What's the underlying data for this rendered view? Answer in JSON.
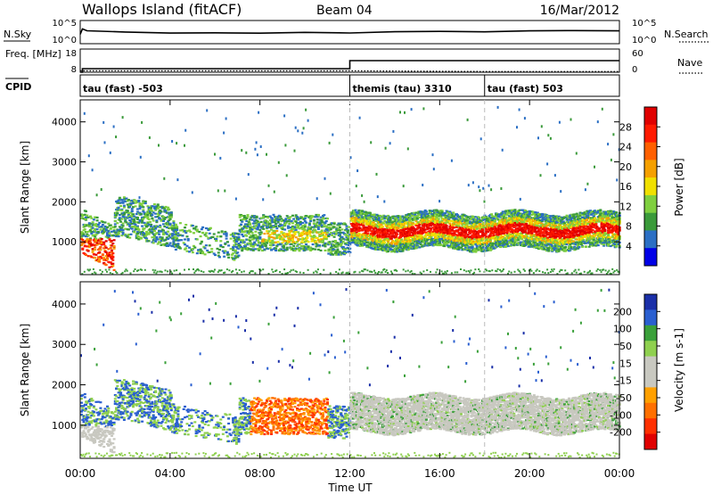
{
  "header": {
    "title": "Wallops Island (fitACF)",
    "beam": "Beam 04",
    "date": "16/Mar/2012"
  },
  "colors": {
    "power_scale": [
      "#0000e6",
      "#2b6fc4",
      "#3a9a3a",
      "#7fcf3f",
      "#f0e000",
      "#f5a000",
      "#ff6000",
      "#ff1a00",
      "#e00000"
    ],
    "velocity_scale": [
      "#1a2fa8",
      "#2a5fd0",
      "#3aa03a",
      "#8fd04f",
      "#c8c8c0",
      "#c8c8c0",
      "#ffa000",
      "#ff7000",
      "#ff3000",
      "#e00000"
    ]
  },
  "chart_data": [
    {
      "type": "line",
      "panel": "noise",
      "ylabel_left": "N.Sky",
      "ylabel_right": "N.Search",
      "yticks_left": [
        "10^5",
        "10^0"
      ],
      "yticks_right": [
        "10^5",
        "10^0"
      ],
      "series": [
        {
          "name": "N.Sky",
          "x": [
            0,
            0.1,
            0.3,
            2,
            4,
            6,
            8,
            10,
            12,
            14,
            16,
            18,
            20,
            22,
            24
          ],
          "y": [
            0.4,
            0.65,
            0.55,
            0.48,
            0.45,
            0.46,
            0.47,
            0.47,
            0.45,
            0.5,
            0.52,
            0.52,
            0.54,
            0.58,
            0.55
          ]
        }
      ]
    },
    {
      "type": "line",
      "panel": "frequency",
      "ylabel_left": "Freq. [MHz]",
      "ylabel_right": "Nave",
      "yticks_left": [
        "18",
        "8"
      ],
      "yticks_right": [
        "60",
        "0"
      ],
      "series": [
        {
          "name": "Freq.",
          "x": [
            0,
            0.1,
            0.1,
            12,
            12,
            24
          ],
          "y": [
            8,
            8,
            10,
            10,
            14.5,
            14.5
          ]
        },
        {
          "name": "Nave",
          "x": [
            0,
            12,
            18,
            24
          ],
          "y": [
            4,
            4,
            2,
            2
          ]
        }
      ]
    },
    {
      "type": "table",
      "panel": "cpid",
      "label": "CPID",
      "segments": [
        {
          "x_start": 0,
          "x_end": 12,
          "label": "tau (fast) -503"
        },
        {
          "x_start": 12,
          "x_end": 18,
          "label": "themis (tau) 3310"
        },
        {
          "x_start": 18,
          "x_end": 24,
          "label": "tau (fast) 503"
        }
      ]
    },
    {
      "type": "heatmap",
      "panel": "power",
      "ylabel": "Slant Range [km]",
      "ylim": [
        180,
        4550
      ],
      "yticks": [
        1000,
        2000,
        3000,
        4000
      ],
      "xlim": [
        0,
        24
      ],
      "colorbar_label": "Power [dB]",
      "colorbar_ticks": [
        4,
        8,
        12,
        16,
        20,
        24,
        28
      ],
      "colorbar_range": [
        0,
        30
      ],
      "features": [
        {
          "x_range": [
            0,
            12
          ],
          "y_center": 1250,
          "width": 500,
          "level": 0.45
        },
        {
          "x_range": [
            0.2,
            1.5
          ],
          "y_center": 900,
          "width": 600,
          "level": 0.8
        },
        {
          "x_range": [
            12,
            24
          ],
          "y_center": 1280,
          "width": 300,
          "level": 0.95
        },
        {
          "x_range": [
            12,
            24
          ],
          "y_center": 1600,
          "width": 250,
          "level": 0.55
        }
      ]
    },
    {
      "type": "heatmap",
      "panel": "velocity",
      "ylabel": "Slant Range [km]",
      "ylim": [
        180,
        4550
      ],
      "yticks": [
        1000,
        2000,
        3000,
        4000
      ],
      "xlim": [
        0,
        24
      ],
      "xticks": [
        "00:00",
        "04:00",
        "08:00",
        "12:00",
        "16:00",
        "20:00",
        "00:00"
      ],
      "xlabel": "Time UT",
      "colorbar_label": "Velocity [m s-1]",
      "colorbar_ticks": [
        200,
        100,
        50,
        15,
        -15,
        -50,
        -100,
        -200
      ],
      "features": [
        {
          "x_range": [
            7.5,
            11
          ],
          "y_center": 1150,
          "width": 500,
          "level": -100
        },
        {
          "x_range": [
            12,
            24
          ],
          "y_center": 1450,
          "width": 700,
          "level": 0
        }
      ]
    }
  ]
}
